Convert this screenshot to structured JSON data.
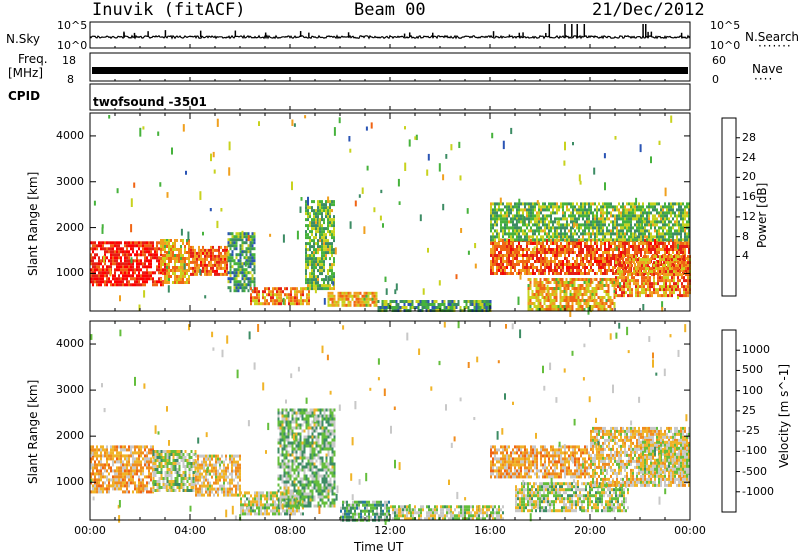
{
  "header": {
    "station": "Inuvik (fitACF)",
    "beam": "Beam 00",
    "date": "21/Dec/2012"
  },
  "strips": {
    "nsky_label": "N.Sky",
    "nsky_ticks": [
      "10^5",
      "10^0"
    ],
    "nsearch_label": "N.Search",
    "nsearch_ticks": [
      "10^5",
      "10^0"
    ],
    "freq_label": "Freq.",
    "freq_unit": "[MHz]",
    "freq_ticks": [
      "18",
      "8"
    ],
    "nave_label": "Nave",
    "nave_ticks": [
      "60",
      "0"
    ],
    "cpid_label": "CPID",
    "cpid_value": "twofsound -3501"
  },
  "colorbars": {
    "power": {
      "title": "Power [dB]",
      "labels": [
        "28",
        "24",
        "20",
        "16",
        "12",
        "8",
        "4"
      ],
      "colors": [
        "#1414e6",
        "#2a54b4",
        "#3c8c64",
        "#46b23c",
        "#c8d21e",
        "#f0a01e",
        "#f06414",
        "#e61e14",
        "#ff0000"
      ]
    },
    "velocity": {
      "title": "Velocity [m s^-1]",
      "labels": [
        "1000",
        "500",
        "100",
        "25",
        "-25",
        "-100",
        "-500",
        "-1000"
      ],
      "colors": [
        "#1e50c8",
        "#2878a0",
        "#3c8c64",
        "#64be3c",
        "#c8c8c8",
        "#f0b428",
        "#f08c1e",
        "#f06414",
        "#e61e14"
      ]
    }
  },
  "chart_data": [
    {
      "type": "heatmap",
      "title": "Power [dB]",
      "xlabel": "Time UT",
      "ylabel": "Slant Range [km]",
      "x_ticks": [
        "00:00",
        "04:00",
        "08:00",
        "12:00",
        "16:00",
        "20:00",
        "00:00"
      ],
      "y_ticks": [
        1000,
        2000,
        3000,
        4000
      ],
      "ylim": [
        180,
        4500
      ],
      "xlim_hours": [
        0,
        24
      ],
      "colorbar_range": [
        0,
        30
      ],
      "regions": [
        {
          "t": [
            0.0,
            3.0
          ],
          "r": [
            750,
            1700
          ],
          "level": 26
        },
        {
          "t": [
            2.8,
            4.0
          ],
          "r": [
            800,
            1750
          ],
          "level": 18
        },
        {
          "t": [
            4.0,
            5.5
          ],
          "r": [
            1000,
            1600
          ],
          "level": 22
        },
        {
          "t": [
            5.5,
            6.6
          ],
          "r": [
            600,
            1900
          ],
          "level": 10
        },
        {
          "t": [
            6.4,
            8.8
          ],
          "r": [
            350,
            700
          ],
          "level": 20
        },
        {
          "t": [
            8.6,
            9.8
          ],
          "r": [
            700,
            2600
          ],
          "level": 12
        },
        {
          "t": [
            9.5,
            11.5
          ],
          "r": [
            300,
            600
          ],
          "level": 18
        },
        {
          "t": [
            11.5,
            16.0
          ],
          "r": [
            220,
            420
          ],
          "level": 10
        },
        {
          "t": [
            16.0,
            24.0
          ],
          "r": [
            1000,
            1750
          ],
          "level": 22
        },
        {
          "t": [
            16.0,
            24.0
          ],
          "r": [
            1750,
            2550
          ],
          "level": 12
        },
        {
          "t": [
            17.5,
            21.0
          ],
          "r": [
            220,
            900
          ],
          "level": 18
        },
        {
          "t": [
            21.0,
            24.0
          ],
          "r": [
            500,
            1400
          ],
          "level": 20
        }
      ]
    },
    {
      "type": "heatmap",
      "title": "Velocity [m s^-1]",
      "xlabel": "Time UT",
      "ylabel": "Slant Range [km]",
      "x_ticks": [
        "00:00",
        "04:00",
        "08:00",
        "12:00",
        "16:00",
        "20:00",
        "00:00"
      ],
      "y_ticks": [
        1000,
        2000,
        3000,
        4000
      ],
      "ylim": [
        180,
        4500
      ],
      "xlim_hours": [
        0,
        24
      ],
      "colorbar_range": [
        -1000,
        1000
      ],
      "regions": [
        {
          "t": [
            0.0,
            2.5
          ],
          "r": [
            800,
            1800
          ],
          "level": -300
        },
        {
          "t": [
            2.5,
            4.2
          ],
          "r": [
            800,
            1700
          ],
          "level": 80
        },
        {
          "t": [
            4.2,
            6.0
          ],
          "r": [
            700,
            1600
          ],
          "level": -200
        },
        {
          "t": [
            6.0,
            8.5
          ],
          "r": [
            300,
            800
          ],
          "level": 0
        },
        {
          "t": [
            7.5,
            9.8
          ],
          "r": [
            500,
            2600
          ],
          "level": 200
        },
        {
          "t": [
            10.0,
            12.0
          ],
          "r": [
            200,
            600
          ],
          "level": 300
        },
        {
          "t": [
            12.0,
            16.5
          ],
          "r": [
            200,
            500
          ],
          "level": 60
        },
        {
          "t": [
            16.0,
            20.0
          ],
          "r": [
            1100,
            1800
          ],
          "level": -300
        },
        {
          "t": [
            17.0,
            21.5
          ],
          "r": [
            400,
            1000
          ],
          "level": 60
        },
        {
          "t": [
            20.0,
            24.0
          ],
          "r": [
            900,
            2200
          ],
          "level": -150
        },
        {
          "t": [
            22.0,
            24.0
          ],
          "r": [
            1200,
            1900
          ],
          "level": 0
        }
      ]
    }
  ]
}
